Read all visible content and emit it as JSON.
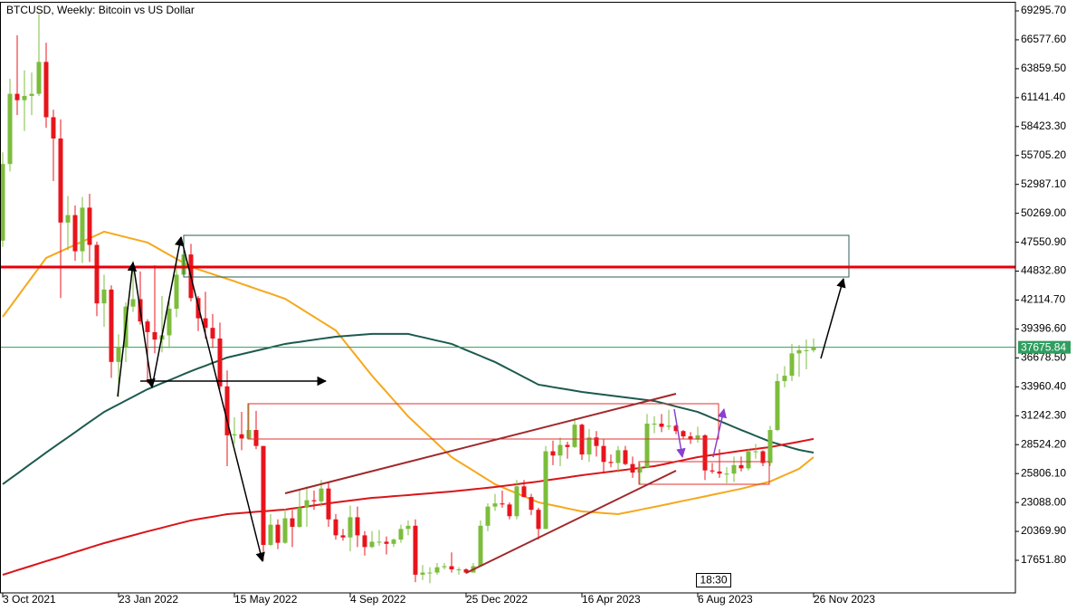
{
  "chart_data": {
    "type": "candlestick",
    "title": "BTCUSD, Weekly: Bitcoin vs US Dollar",
    "categories": [
      "3 Oct 2021",
      null,
      null,
      null,
      null,
      null,
      null,
      null,
      null,
      null,
      null,
      null,
      null,
      null,
      null,
      null,
      "23 Jan 2022",
      null,
      null,
      null,
      null,
      null,
      null,
      null,
      null,
      null,
      null,
      null,
      null,
      null,
      null,
      null,
      "15 May 2022",
      null,
      null,
      null,
      null,
      null,
      null,
      null,
      null,
      null,
      null,
      null,
      null,
      null,
      null,
      null,
      "4 Sep 2022",
      null,
      null,
      null,
      null,
      null,
      null,
      null,
      null,
      null,
      null,
      null,
      null,
      null,
      null,
      null,
      "25 Dec 2022",
      null,
      null,
      null,
      null,
      null,
      null,
      null,
      null,
      null,
      null,
      null,
      null,
      null,
      null,
      null,
      "16 Apr 2023",
      null,
      null,
      null,
      null,
      null,
      null,
      null,
      null,
      null,
      null,
      null,
      null,
      null,
      null,
      null,
      "6 Aug 2023",
      null,
      null,
      null,
      null,
      null,
      null,
      null,
      null,
      null,
      null,
      null,
      null,
      null,
      null,
      null,
      "26 Nov 2023"
    ],
    "open": [
      47700,
      54900,
      61500,
      60900,
      61300,
      61500,
      64500,
      59300,
      57300,
      49400,
      50100,
      46700,
      50800,
      47300,
      41800,
      43100,
      36300,
      37700,
      41500,
      42200,
      40100,
      39100,
      38400,
      38800,
      41300,
      44500,
      46400,
      42300,
      40400,
      39500,
      38500,
      34000,
      29400,
      29500,
      29100,
      29900,
      28400,
      19100,
      21000,
      19300,
      21600,
      20800,
      22600,
      23300,
      23200,
      24400,
      21500,
      20000,
      19800,
      21700,
      20000,
      18900,
      19400,
      19400,
      19200,
      19600,
      20600,
      20900,
      16300,
      16500,
      16500,
      17000,
      17100,
      16800,
      16800,
      16500,
      17100,
      20900,
      22700,
      23000,
      22900,
      21800,
      24600,
      23600,
      22400,
      20600,
      27900,
      27500,
      28500,
      28300,
      30400,
      27600,
      29200,
      28400,
      26900,
      26800,
      28000,
      26700,
      25900,
      26400,
      30500,
      30500,
      30200,
      30300,
      29800,
      29300,
      29000,
      29400,
      26100,
      26000,
      25800,
      25800,
      26600,
      26300,
      27900,
      27900,
      26800,
      29900,
      34500,
      35000,
      37100,
      37400,
      37400
    ],
    "high": [
      56000,
      62900,
      67000,
      63700,
      63500,
      69000,
      66300,
      60000,
      59100,
      51900,
      51000,
      51800,
      52100,
      47600,
      44500,
      43500,
      38900,
      41900,
      45800,
      44800,
      40300,
      45400,
      42500,
      42400,
      45900,
      48200,
      47400,
      42500,
      42900,
      40800,
      40000,
      35500,
      31100,
      31600,
      32400,
      31700,
      28400,
      22000,
      21500,
      22500,
      22400,
      24200,
      24600,
      24200,
      25200,
      25000,
      22000,
      20600,
      22800,
      22700,
      20400,
      20400,
      20500,
      19900,
      19700,
      21000,
      21400,
      21500,
      17200,
      17000,
      17400,
      17400,
      18400,
      17000,
      16900,
      17400,
      21400,
      23000,
      23900,
      24200,
      23100,
      25200,
      25200,
      23900,
      22600,
      28400,
      28900,
      29200,
      28800,
      31000,
      30500,
      30000,
      29800,
      29000,
      27600,
      28400,
      28400,
      27400,
      26800,
      31400,
      31200,
      31400,
      31800,
      30400,
      29900,
      29700,
      30200,
      29500,
      26800,
      28100,
      26400,
      27400,
      27400,
      28100,
      28600,
      28000,
      30300,
      35200,
      35900,
      38000,
      37900,
      38400,
      38500
    ],
    "low": [
      47100,
      54200,
      59500,
      58000,
      59500,
      61300,
      58300,
      53300,
      42300,
      46800,
      45800,
      45600,
      45700,
      40600,
      39600,
      34800,
      33000,
      36300,
      41000,
      39800,
      34300,
      37100,
      37200,
      37600,
      40500,
      44300,
      42000,
      39200,
      38500,
      37600,
      33700,
      26500,
      28600,
      28000,
      29100,
      28100,
      17600,
      19000,
      18700,
      19200,
      18900,
      20700,
      20800,
      22400,
      22700,
      20800,
      19600,
      19500,
      18500,
      18900,
      18100,
      18800,
      19000,
      18200,
      18900,
      19300,
      20000,
      15600,
      15800,
      15500,
      16300,
      16800,
      16500,
      16300,
      16400,
      16500,
      17100,
      20400,
      22300,
      22600,
      21500,
      21500,
      23600,
      21900,
      19600,
      20600,
      26600,
      26500,
      27200,
      28200,
      27100,
      26900,
      27400,
      25800,
      26400,
      25900,
      26600,
      25400,
      24800,
      26300,
      29600,
      29700,
      29900,
      29500,
      29100,
      28600,
      28700,
      25200,
      25800,
      25400,
      24900,
      25000,
      26000,
      26100,
      27200,
      26500,
      26500,
      29800,
      33900,
      34500,
      34900,
      35600,
      37200
    ],
    "close": [
      54900,
      61500,
      60900,
      61300,
      61500,
      64500,
      59300,
      57300,
      49400,
      50100,
      46700,
      50800,
      47300,
      41800,
      43100,
      36300,
      37700,
      41500,
      42200,
      40100,
      39100,
      38400,
      38800,
      41300,
      44500,
      46400,
      42300,
      40400,
      39500,
      38500,
      34000,
      29400,
      29500,
      29100,
      29900,
      28400,
      19100,
      21000,
      19300,
      21600,
      20800,
      22600,
      23300,
      23200,
      24400,
      21500,
      20000,
      19800,
      21700,
      20000,
      18900,
      19400,
      19400,
      19200,
      19600,
      20600,
      20900,
      16300,
      16500,
      16500,
      17000,
      17100,
      16800,
      16800,
      16500,
      17100,
      20900,
      22700,
      23000,
      22900,
      21800,
      24600,
      23600,
      22400,
      20600,
      27900,
      27500,
      28500,
      28300,
      30400,
      27600,
      29200,
      28400,
      26900,
      26800,
      28000,
      26700,
      25900,
      26400,
      30500,
      30500,
      30200,
      30300,
      29800,
      29300,
      29000,
      29400,
      26100,
      26000,
      25800,
      25800,
      26600,
      26300,
      27900,
      27900,
      26800,
      29900,
      34500,
      35000,
      37100,
      37400,
      37400,
      37675.84
    ],
    "up_color": "#7cbd3c",
    "down_color": "#e8141c",
    "series": [
      {
        "color": "#f5a81c",
        "values": [
          40540,
          41460,
          42380,
          43310,
          44230,
          45150,
          46070,
          46380,
          46690,
          47000,
          47310,
          47610,
          47920,
          48230,
          48540,
          48370,
          48200,
          48030,
          47860,
          47690,
          47520,
          47140,
          46750,
          46370,
          45990,
          45600,
          45220,
          45000,
          44780,
          44550,
          44330,
          44110,
          43880,
          43640,
          43410,
          43170,
          42940,
          42710,
          42470,
          42240,
          41810,
          41390,
          40960,
          40540,
          40110,
          39690,
          39260,
          38410,
          37560,
          36710,
          35860,
          35010,
          34240,
          33480,
          32710,
          31950,
          31180,
          30540,
          29900,
          29270,
          28630,
          27990,
          27350,
          26920,
          26500,
          26080,
          25650,
          25230,
          24800,
          24520,
          24230,
          23950,
          23670,
          23380,
          23100,
          22960,
          22820,
          22680,
          22530,
          22390,
          22250,
          22200,
          22150,
          22090,
          22040,
          21990,
          22130,
          22260,
          22400,
          22540,
          22670,
          22810,
          22950,
          23100,
          23240,
          23380,
          23520,
          23660,
          23810,
          23950,
          24090,
          24240,
          24380,
          24550,
          24720,
          24890,
          25060,
          25360,
          25660,
          25950,
          26250,
          26800,
          27350
        ]
      },
      {
        "color": "#1d5a4e",
        "values": [
          24800,
          25300,
          25790,
          26290,
          26790,
          27280,
          27780,
          28260,
          28740,
          29210,
          29690,
          30170,
          30650,
          31120,
          31600,
          31960,
          32310,
          32670,
          33020,
          33380,
          33730,
          34010,
          34300,
          34580,
          34860,
          35150,
          35430,
          35690,
          35940,
          36200,
          36450,
          36710,
          36870,
          37030,
          37190,
          37350,
          37510,
          37670,
          37830,
          37990,
          38090,
          38180,
          38280,
          38380,
          38480,
          38570,
          38670,
          38720,
          38770,
          38830,
          38880,
          38930,
          38930,
          38930,
          38930,
          38930,
          38930,
          38770,
          38620,
          38460,
          38300,
          38150,
          37990,
          37710,
          37420,
          37140,
          36860,
          36570,
          36290,
          35940,
          35580,
          35230,
          34870,
          34520,
          34160,
          34050,
          33930,
          33820,
          33710,
          33590,
          33480,
          33390,
          33310,
          33220,
          33140,
          33050,
          32970,
          32880,
          32800,
          32710,
          32630,
          32460,
          32290,
          32110,
          31940,
          31770,
          31600,
          31320,
          31030,
          30750,
          30470,
          30180,
          29900,
          29630,
          29350,
          29080,
          28800,
          28610,
          28420,
          28220,
          28030,
          27900,
          27780
        ]
      },
      {
        "color": "#d9141a",
        "values": [
          16290,
          16500,
          16720,
          16930,
          17140,
          17360,
          17570,
          17780,
          17990,
          18210,
          18420,
          18630,
          18850,
          19060,
          19270,
          19450,
          19640,
          19820,
          20000,
          20190,
          20370,
          20540,
          20710,
          20890,
          21060,
          21230,
          21400,
          21520,
          21640,
          21750,
          21870,
          21990,
          22040,
          22100,
          22150,
          22210,
          22260,
          22310,
          22370,
          22420,
          22520,
          22610,
          22710,
          22810,
          22910,
          23000,
          23100,
          23180,
          23270,
          23350,
          23440,
          23520,
          23570,
          23620,
          23680,
          23730,
          23780,
          23840,
          23890,
          23950,
          24010,
          24060,
          24120,
          24190,
          24260,
          24330,
          24400,
          24470,
          24540,
          24630,
          24710,
          24800,
          24890,
          24970,
          25060,
          25160,
          25260,
          25350,
          25450,
          25550,
          25650,
          25740,
          25820,
          25910,
          25990,
          26080,
          26160,
          26250,
          26330,
          26420,
          26500,
          26640,
          26780,
          26930,
          27070,
          27210,
          27350,
          27450,
          27550,
          27650,
          27750,
          27850,
          27950,
          28040,
          28120,
          28210,
          28290,
          28420,
          28550,
          28670,
          28800,
          28930,
          29060
        ]
      }
    ],
    "last_price": {
      "value": 37675.84,
      "label": "37675.84"
    },
    "last_price_color": "#2f9e5f",
    "timer": "18:30",
    "ylim": [
      14589,
      70147
    ],
    "yticks": [
      {
        "value": 69295.7,
        "label": "69295.70"
      },
      {
        "value": 66577.6,
        "label": "66577.60"
      },
      {
        "value": 63859.5,
        "label": "63859.50"
      },
      {
        "value": 61141.4,
        "label": "61141.40"
      },
      {
        "value": 58423.3,
        "label": "58423.30"
      },
      {
        "value": 55705.2,
        "label": "55705.20"
      },
      {
        "value": 52987.1,
        "label": "52987.10"
      },
      {
        "value": 50269,
        "label": "50269.00"
      },
      {
        "value": 47550.9,
        "label": "47550.90"
      },
      {
        "value": 44832.8,
        "label": "44832.80"
      },
      {
        "value": 42114.7,
        "label": "42114.70"
      },
      {
        "value": 39396.6,
        "label": "39396.60"
      },
      {
        "value": 36678.5,
        "label": "36678.50"
      },
      {
        "value": 33960.4,
        "label": "33960.40"
      },
      {
        "value": 31242.3,
        "label": "31242.30"
      },
      {
        "value": 28524.2,
        "label": "28524.20"
      },
      {
        "value": 25806.1,
        "label": "25806.10"
      },
      {
        "value": 23088,
        "label": "23088.00"
      },
      {
        "value": 20369.9,
        "label": "20369.90"
      },
      {
        "value": 17651.8,
        "label": "17651.80"
      }
    ],
    "grid": false
  }
}
